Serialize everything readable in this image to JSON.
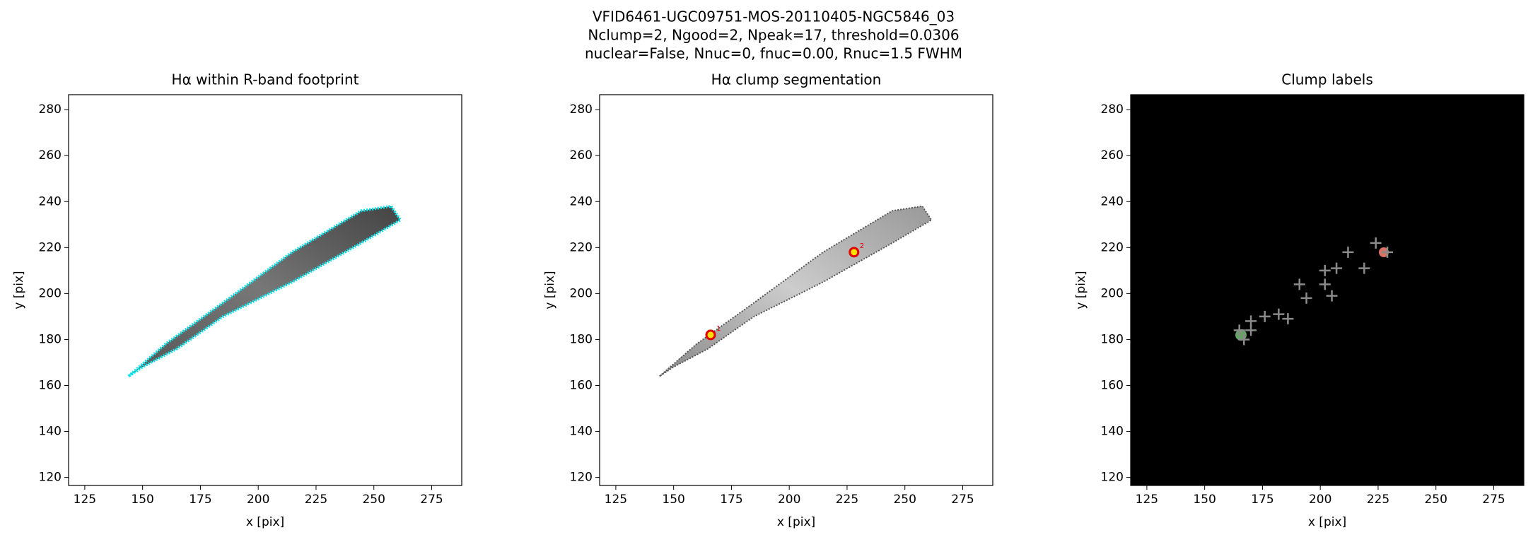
{
  "figure_title": [
    "VFID6461-UGC09751-MOS-20110405-NGC5846_03",
    "Nclump=2, Ngood=2, Npeak=17, threshold=0.0306",
    "nuclear=False, Nnuc=0, fnuc=0.00, Rnuc=1.5 FWHM"
  ],
  "chart_data": [
    {
      "type": "image",
      "title": "Hα within R-band footprint",
      "xlabel": "x [pix]",
      "ylabel": "y [pix]",
      "xlim": [
        118,
        288
      ],
      "ylim": [
        116.5,
        286.5
      ],
      "xticks": [
        125,
        150,
        175,
        200,
        225,
        250,
        275
      ],
      "yticks": [
        120,
        140,
        160,
        180,
        200,
        220,
        240,
        260,
        280
      ]
    },
    {
      "type": "image",
      "title": "Hα clump segmentation",
      "xlabel": "x [pix]",
      "ylabel": "y [pix]",
      "xlim": [
        118,
        288
      ],
      "ylim": [
        116.5,
        286.5
      ],
      "xticks": [
        125,
        150,
        175,
        200,
        225,
        250,
        275
      ],
      "yticks": [
        120,
        140,
        160,
        180,
        200,
        220,
        240,
        260,
        280
      ],
      "clumps": {
        "x": [
          166,
          228
        ],
        "y": [
          182,
          218
        ],
        "labels": [
          "1",
          "2"
        ]
      }
    },
    {
      "type": "image",
      "title": "Clump labels",
      "xlabel": "x [pix]",
      "ylabel": "y [pix]",
      "xlim": [
        118,
        288
      ],
      "ylim": [
        116.5,
        286.5
      ],
      "xticks": [
        125,
        150,
        175,
        200,
        225,
        250,
        275
      ],
      "yticks": [
        120,
        140,
        160,
        180,
        200,
        220,
        240,
        260,
        280
      ],
      "peaks": {
        "x": [
          165,
          167,
          170,
          170,
          176,
          182,
          186,
          191,
          194,
          202,
          202,
          205,
          207,
          212,
          219,
          224,
          229
        ],
        "y": [
          184,
          180,
          188,
          184,
          190,
          191,
          189,
          204,
          198,
          210,
          204,
          199,
          211,
          218,
          211,
          222,
          218
        ]
      }
    }
  ]
}
